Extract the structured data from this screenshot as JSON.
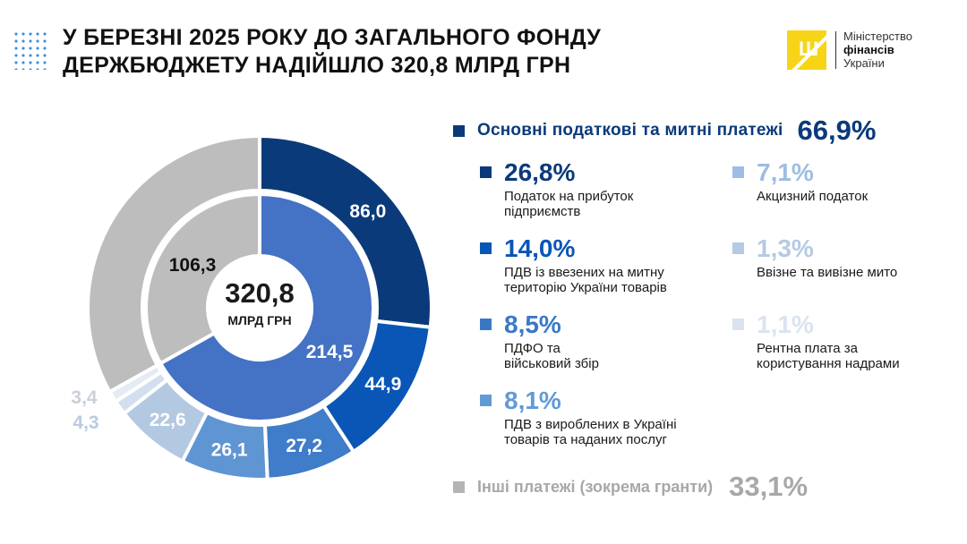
{
  "header": {
    "title_line1": "У БЕРЕЗНІ 2025 РОКУ ДО ЗАГАЛЬНОГО ФОНДУ",
    "title_line2": "ДЕРЖБЮДЖЕТУ НАДІЙШЛО 320,8 МЛРД ГРН"
  },
  "logo": {
    "line1": "Міністерство",
    "line2": "фінансів",
    "line3": "України"
  },
  "center": {
    "total": "320,8",
    "unit": "МЛРД ГРН"
  },
  "legend": {
    "main": {
      "label": "Основні податкові та митні платежі",
      "pct": "66,9%",
      "color": "#0b3a7a"
    },
    "items": [
      {
        "pct": "26,8%",
        "desc": [
          "Податок на прибуток",
          "підприємств"
        ],
        "color": "#0b3a7a"
      },
      {
        "pct": "14,0%",
        "desc": [
          "ПДВ із ввезених на митну",
          "територію України товарів"
        ],
        "color": "#0a56b6"
      },
      {
        "pct": "8,5%",
        "desc": [
          "ПДФО та",
          "військовий збір"
        ],
        "color": "#3a78c6"
      },
      {
        "pct": "8,1%",
        "desc": [
          "ПДВ з вироблених в Україні",
          "товарів та наданих послуг"
        ],
        "color": "#629ad6"
      },
      {
        "pct": "7,1%",
        "desc": [
          "Акцизний податок"
        ],
        "color": "#9dbde2"
      },
      {
        "pct": "1,3%",
        "desc": [
          "Ввізне та вивізне мито"
        ],
        "color": "#b5cae3"
      },
      {
        "pct": "1,1%",
        "desc": [
          "Рентна плата за",
          "користування надрами"
        ],
        "color": "#dae3ef"
      }
    ],
    "other": {
      "label": "Інші платежі (зокрема гранти)",
      "pct": "33,1%",
      "color": "#b4b4b4"
    }
  },
  "chart_data": {
    "type": "pie",
    "title": "У березні 2025 року до загального фонду держбюджету надійшло 320,8 млрд грн",
    "unit": "млрд грн",
    "total": 320.8,
    "outer_ring": [
      {
        "label": "86,0",
        "value": 86.0,
        "color": "#0b3a7a",
        "text_color": "#ffffff",
        "outside": false
      },
      {
        "label": "44,9",
        "value": 44.9,
        "color": "#0a56b6",
        "text_color": "#ffffff",
        "outside": false
      },
      {
        "label": "27,2",
        "value": 27.2,
        "color": "#3f7cc9",
        "text_color": "#ffffff",
        "outside": false
      },
      {
        "label": "26,1",
        "value": 26.1,
        "color": "#5f95d3",
        "text_color": "#ffffff",
        "outside": false
      },
      {
        "label": "22,6",
        "value": 22.6,
        "color": "#b3c9e2",
        "text_color": "#ffffff",
        "outside": false
      },
      {
        "label": "4,3",
        "value": 4.3,
        "color": "#d3dfee",
        "text_color": "#b7cbe3",
        "outside": true
      },
      {
        "label": "3,4",
        "value": 3.4,
        "color": "#e5ebf3",
        "text_color": "#c9d0d8",
        "outside": true
      },
      {
        "label": "",
        "value": 106.3,
        "color": "#bdbdbd",
        "text_color": "#ffffff",
        "outside": false
      }
    ],
    "inner_ring": [
      {
        "label": "214,5",
        "value": 214.5,
        "color": "#4472c4",
        "text_color": "#ffffff"
      },
      {
        "label": "106,3",
        "value": 106.3,
        "color": "#bdbdbd",
        "text_color": "#111111"
      }
    ]
  }
}
